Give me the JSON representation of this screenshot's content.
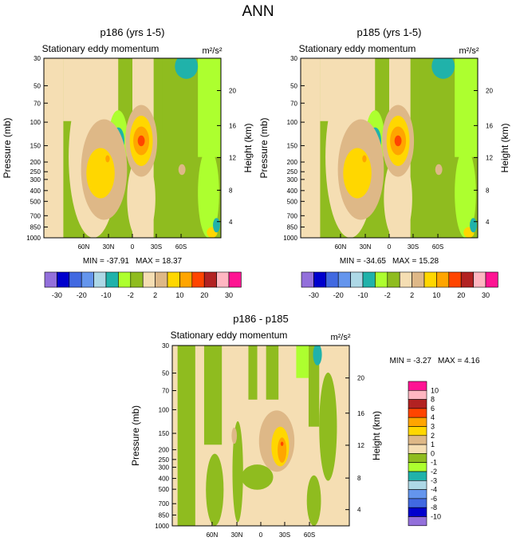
{
  "title": "ANN",
  "chart_data": [
    {
      "type": "heatmap",
      "title": "p186 (yrs 1-5)",
      "subtitle": "Stationary eddy momentum",
      "units": "m²/s²",
      "ylabel": "Pressure (mb)",
      "y2label": "Height (km)",
      "yticks": [
        "30",
        "50",
        "70",
        "100",
        "150",
        "200",
        "250",
        "300",
        "400",
        "500",
        "700",
        "850",
        "1000"
      ],
      "y2ticks": [
        "20",
        "16",
        "12",
        "8",
        "4"
      ],
      "xticks": [
        "60N",
        "30N",
        "0",
        "30S",
        "60S"
      ],
      "min_label": "MIN = -37.91",
      "max_label": "MAX =  18.37",
      "min": -37.91,
      "max": 18.37
    },
    {
      "type": "heatmap",
      "title": "p185 (yrs 1-5)",
      "subtitle": "Stationary eddy momentum",
      "units": "m²/s²",
      "ylabel": "Pressure (mb)",
      "y2label": "Height (km)",
      "yticks": [
        "30",
        "50",
        "70",
        "100",
        "150",
        "200",
        "250",
        "300",
        "400",
        "500",
        "700",
        "850",
        "1000"
      ],
      "y2ticks": [
        "20",
        "16",
        "12",
        "8",
        "4"
      ],
      "xticks": [
        "60N",
        "30N",
        "0",
        "30S",
        "60S"
      ],
      "min_label": "MIN = -34.65",
      "max_label": "MAX =  15.28",
      "min": -34.65,
      "max": 15.28
    },
    {
      "type": "heatmap",
      "title": "p186 - p185",
      "subtitle": "Stationary eddy momentum",
      "units": "m²/s²",
      "ylabel": "Pressure (mb)",
      "y2label": "Height (km)",
      "yticks": [
        "30",
        "50",
        "70",
        "100",
        "150",
        "200",
        "250",
        "300",
        "400",
        "500",
        "700",
        "850",
        "1000"
      ],
      "y2ticks": [
        "20",
        "16",
        "12",
        "8",
        "4"
      ],
      "xticks": [
        "60N",
        "30N",
        "0",
        "30S",
        "60S"
      ],
      "min_label": "MIN =  -3.27",
      "max_label": "MAX =   4.16",
      "min": -3.27,
      "max": 4.16
    }
  ],
  "colorbar_main": {
    "labels": [
      "-30",
      "-20",
      "-10",
      "-2",
      "2",
      "10",
      "20",
      "30"
    ],
    "colors": [
      "#9370db",
      "#0000cd",
      "#4169e1",
      "#6495ed",
      "#add8e6",
      "#20b2aa",
      "#adff2f",
      "#8fbc1f",
      "#f5deb3",
      "#deb887",
      "#ffd700",
      "#ffa500",
      "#ff4500",
      "#b22222",
      "#ffb6c1",
      "#ff1493"
    ]
  },
  "colorbar_diff": {
    "labels": [
      "10",
      "8",
      "6",
      "4",
      "3",
      "2",
      "1",
      "0",
      "-1",
      "-2",
      "-3",
      "-4",
      "-6",
      "-8",
      "-10"
    ],
    "colors": [
      "#ff1493",
      "#ffb6c1",
      "#b22222",
      "#ff4500",
      "#ffa500",
      "#ffd700",
      "#deb887",
      "#f5deb3",
      "#8fbc1f",
      "#adff2f",
      "#20b2aa",
      "#add8e6",
      "#6495ed",
      "#4169e1",
      "#0000cd",
      "#9370db"
    ]
  }
}
